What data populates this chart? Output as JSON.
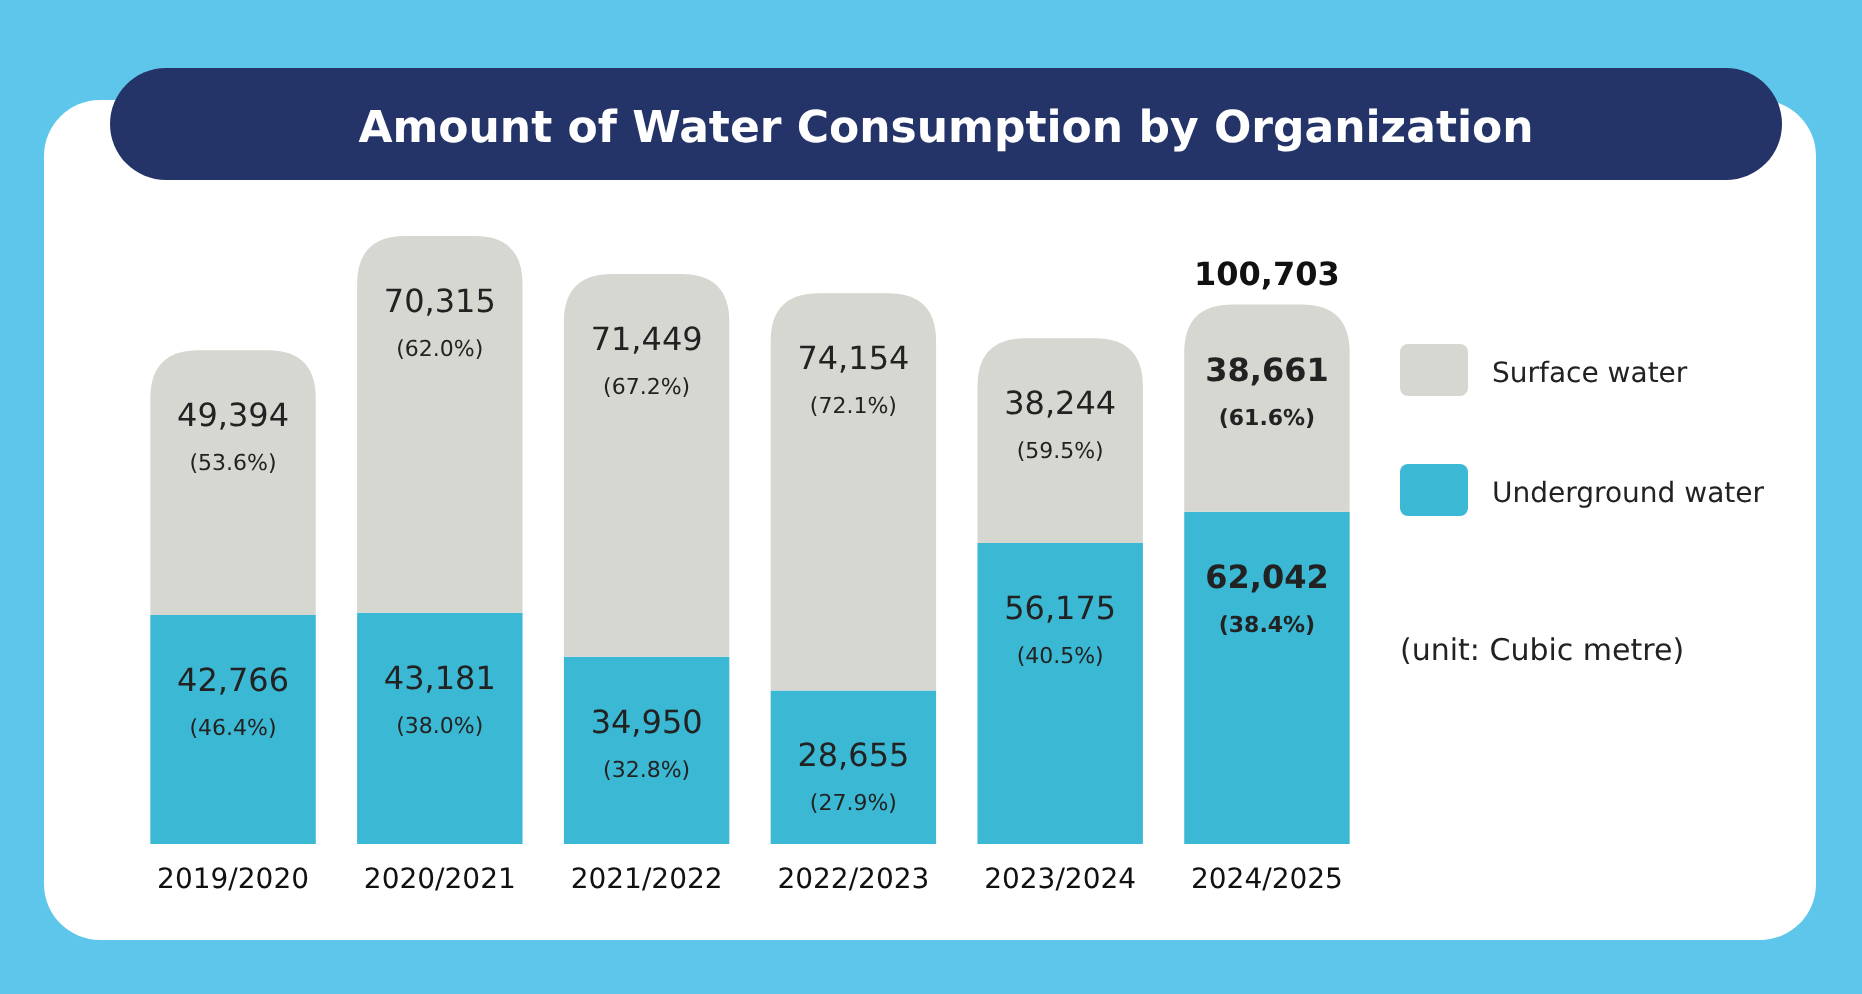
{
  "chart_data": {
    "type": "bar",
    "title": "Amount of Water Consumption by Organization",
    "stacked": true,
    "data_labels": true,
    "legend": "right",
    "categories": [
      "2019/2020",
      "2020/2021",
      "2021/2022",
      "2022/2023",
      "2023/2024",
      "2024/2025"
    ],
    "series": [
      {
        "name": "Underground water",
        "color": "#3bb8d4",
        "values": [
          42766,
          43181,
          34950,
          28655,
          56175,
          62042
        ],
        "value_labels": [
          "42,766\n(46.4%)",
          "43,181\n(38.0%)",
          "34,950\n(32.8%)",
          "28,655\n(27.9%)",
          "56,175\n(40.5%)",
          "62,042\n(38.4%)"
        ]
      },
      {
        "name": "Surface water",
        "color": "#d6d7d1",
        "values": [
          49394,
          70315,
          71449,
          74154,
          38244,
          38661
        ],
        "value_labels": [
          "49,394\n(53.6%)",
          "70,315\n(62.0%)",
          "71,449\n(67.2%)",
          "74,154\n(72.1%)",
          "38,244\n(59.5%)",
          "38,661\n(61.6%)"
        ]
      }
    ],
    "totals": [
      null,
      null,
      null,
      null,
      null,
      "100,703"
    ],
    "annotations": [
      "(unit: Cubic metre)"
    ]
  }
}
